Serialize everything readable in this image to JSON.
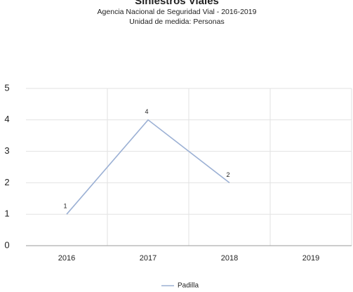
{
  "chart_data": {
    "type": "line",
    "title": "Siniestros Viales",
    "subtitle": [
      "Agencia Nacional de Seguridad Vial - 2016-2019",
      "Unidad de medida: Personas"
    ],
    "categories": [
      "2016",
      "2017",
      "2018",
      "2019"
    ],
    "series": [
      {
        "name": "Padilla",
        "color": "#9bb0d4",
        "values": [
          1,
          4,
          2,
          null
        ]
      }
    ],
    "ylim": [
      0,
      5
    ],
    "yticks": [
      0,
      1,
      2,
      3,
      4,
      5
    ],
    "grid": true,
    "legend": "bottom"
  }
}
